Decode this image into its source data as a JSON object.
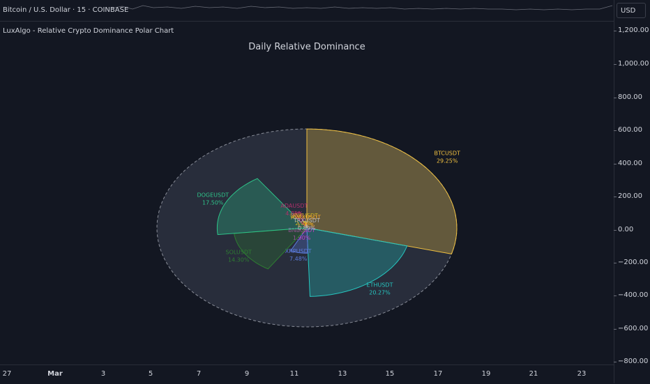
{
  "header": {
    "symbol_title": "Bitcoin / U.S. Dollar · 15 · COINBASE",
    "currency": "USD"
  },
  "indicator": {
    "name": "LuxAlgo - Relative Crypto Dominance Polar Chart"
  },
  "price_axis": {
    "ticks": [
      "1,200.00",
      "1,000.00",
      "800.00",
      "600.00",
      "400.00",
      "200.00",
      "0.00",
      "−200.00",
      "−400.00",
      "−600.00",
      "−800.00"
    ]
  },
  "time_axis": {
    "labels": [
      {
        "text": "27",
        "bold": false
      },
      {
        "text": "Mar",
        "bold": true
      },
      {
        "text": "3",
        "bold": false
      },
      {
        "text": "5",
        "bold": false
      },
      {
        "text": "7",
        "bold": false
      },
      {
        "text": "9",
        "bold": false
      },
      {
        "text": "11",
        "bold": false
      },
      {
        "text": "13",
        "bold": false
      },
      {
        "text": "15",
        "bold": false
      },
      {
        "text": "17",
        "bold": false
      },
      {
        "text": "19",
        "bold": false
      },
      {
        "text": "21",
        "bold": false
      },
      {
        "text": "23",
        "bold": false
      }
    ]
  },
  "chart_data": {
    "type": "pie",
    "title": "Daily Relative Dominance",
    "slices": [
      {
        "name": "BTCUSDT",
        "label": "29.25%",
        "value": 29.25,
        "color": "#f0c040"
      },
      {
        "name": "ETHUSDT",
        "label": "20.27%",
        "value": 20.27,
        "color": "#26c6c0"
      },
      {
        "name": "XRPUSDT",
        "label": "7.48%",
        "value": 7.48,
        "color": "#5b7bdc"
      },
      {
        "name": "BNBUSDT",
        "label": "1.90%",
        "value": 1.9,
        "color": "#c040c0"
      },
      {
        "name": "SOLUSDT",
        "label": "14.30%",
        "value": 14.3,
        "color": "#2e7d32"
      },
      {
        "name": "DOGEUSDT",
        "label": "17.50%",
        "value": 17.5,
        "color": "#2ec48a"
      },
      {
        "name": "ADAUSDT",
        "label": "4.85%",
        "value": 4.85,
        "color": "#b0306a"
      },
      {
        "name": "LINKUSDT",
        "label": "2.05%",
        "value": 2.05,
        "color": "#c8b020"
      },
      {
        "name": "AVAXUSDT",
        "label": "1.52%",
        "value": 1.52,
        "color": "#f0a030"
      },
      {
        "name": "TRXUSDT",
        "label": "0.89%",
        "value": 0.89,
        "color": "#b0b4c0"
      }
    ]
  }
}
